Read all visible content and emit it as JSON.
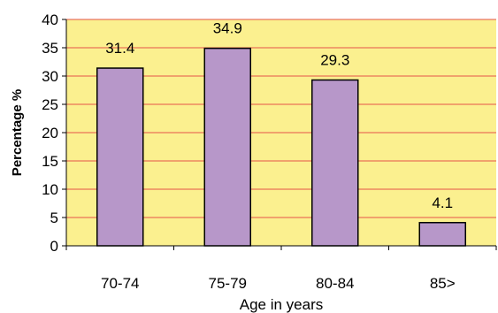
{
  "chart_data": {
    "type": "bar",
    "title": "",
    "xlabel": "Age in years",
    "ylabel": "Percentage %",
    "categories": [
      "70-74",
      "75-79",
      "80-84",
      "85>"
    ],
    "values": [
      31.4,
      34.9,
      29.3,
      4.1
    ],
    "data_labels": [
      "31.4",
      "34.9",
      "29.3",
      "4.1"
    ],
    "ylim": [
      0,
      40
    ],
    "yticks": [
      "0",
      "5",
      "10",
      "15",
      "20",
      "25",
      "30",
      "35",
      "40"
    ],
    "grid": true,
    "legend": "none",
    "colors": {
      "plot_background": "#fbf08f",
      "bar_fill": "#b797c9",
      "bar_stroke": "#000000",
      "gridline": "#e6534a"
    }
  }
}
